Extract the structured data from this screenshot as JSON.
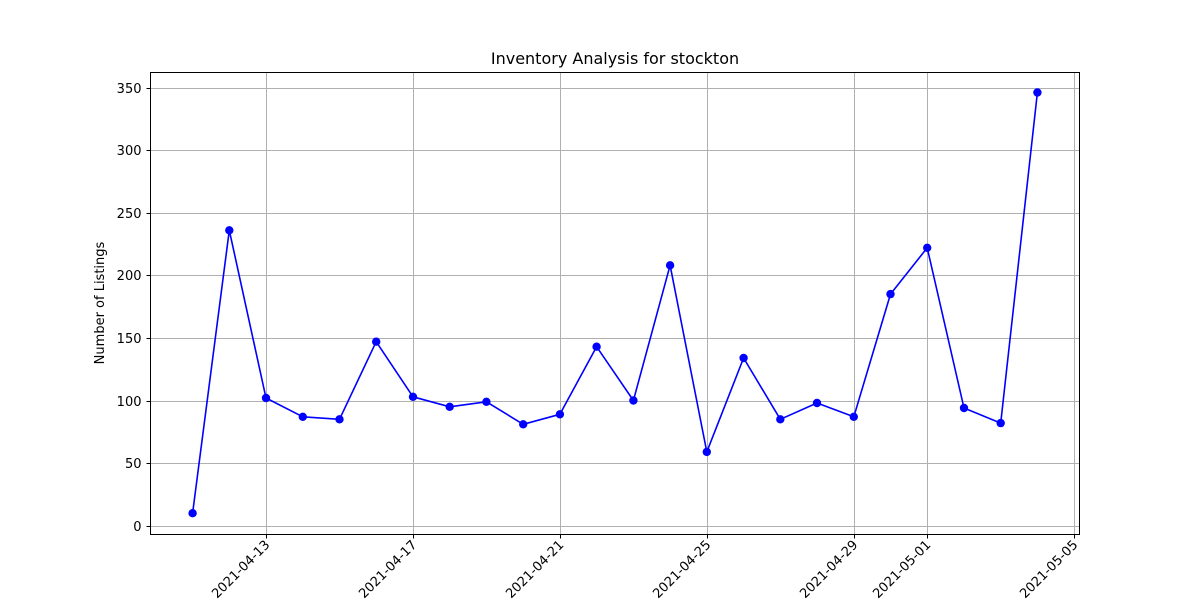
{
  "chart_data": {
    "type": "line",
    "title": "Inventory Analysis for stockton",
    "xlabel": "",
    "ylabel": "Number of Listings",
    "x_tick_labels": [
      "2021-04-13",
      "2021-04-17",
      "2021-04-21",
      "2021-04-25",
      "2021-04-29",
      "2021-05-01",
      "2021-05-05"
    ],
    "x_tick_dates": [
      "2021-04-13",
      "2021-04-17",
      "2021-04-21",
      "2021-04-25",
      "2021-04-29",
      "2021-05-01",
      "2021-05-05"
    ],
    "y_ticks": [
      0,
      50,
      100,
      150,
      200,
      250,
      300,
      350
    ],
    "xlim": [
      "2021-04-10",
      "2021-05-05"
    ],
    "ylim": [
      -7,
      362
    ],
    "grid": true,
    "x": [
      "2021-04-11",
      "2021-04-12",
      "2021-04-13",
      "2021-04-14",
      "2021-04-15",
      "2021-04-16",
      "2021-04-17",
      "2021-04-18",
      "2021-04-19",
      "2021-04-20",
      "2021-04-21",
      "2021-04-22",
      "2021-04-23",
      "2021-04-24",
      "2021-04-25",
      "2021-04-26",
      "2021-04-27",
      "2021-04-28",
      "2021-04-29",
      "2021-04-30",
      "2021-05-01",
      "2021-05-02",
      "2021-05-03",
      "2021-05-04"
    ],
    "series": [
      {
        "values": [
          10,
          236,
          102,
          87,
          85,
          147,
          103,
          95,
          99,
          81,
          89,
          143,
          100,
          208,
          59,
          134,
          85,
          98,
          87,
          185,
          222,
          94,
          82,
          346
        ],
        "color": "#0000ff",
        "marker": "circle"
      }
    ],
    "colors": {
      "grid": "#b0b0b0",
      "axes": "#000000",
      "background": "#ffffff"
    }
  }
}
